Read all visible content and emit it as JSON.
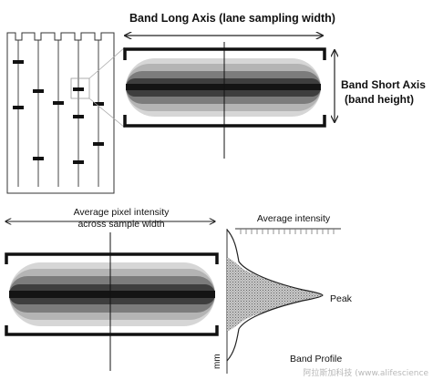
{
  "labels": {
    "long_axis": "Band Long Axis (lane sampling width)",
    "short_axis_line1": "Band Short Axis",
    "short_axis_line2": "(band height)",
    "avg_pixel_line1": "Average pixel intensity",
    "avg_pixel_line2": "across sample width",
    "avg_intensity": "Average intensity",
    "peak": "Peak",
    "band_profile": "Band Profile",
    "mm": "mm",
    "watermark": "阿拉斯加科技 (www.alifescience"
  }
}
